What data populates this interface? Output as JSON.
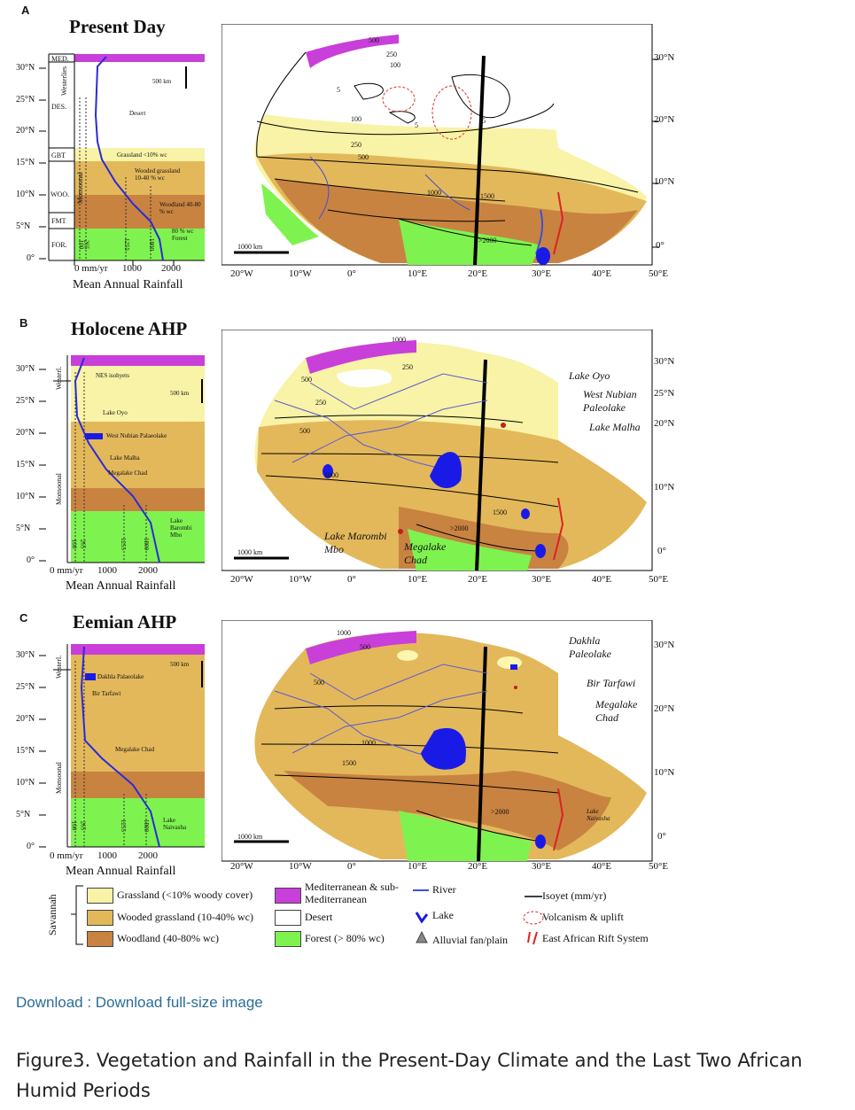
{
  "panels": [
    {
      "id": "A",
      "letter": "A",
      "title": "Present Day",
      "lat_labels": [
        "30°N",
        "25°N",
        "20°N",
        "15°N",
        "10°N",
        "5°N",
        "0°"
      ],
      "zones": [
        "MED.",
        "DES.",
        "GBT",
        "WOO.",
        "FMT",
        "FOR."
      ],
      "side_labels": [
        "Westerlies",
        "Monsoonal"
      ],
      "scale_col": "500 km",
      "col_annotations": [
        "Desert",
        "Grassland <10% wc",
        "Wooded grassland 10-40 % wc",
        "Woodland 40-80 % wc",
        "80 % wc Forest"
      ],
      "isoyet_ticks": [
        "100",
        "265",
        "1255",
        "1800"
      ],
      "x_ticks": [
        "0 mm/yr",
        "1000",
        "2000"
      ],
      "x_title": "Mean Annual Rainfall",
      "map_scale": "1000 km",
      "map_right_lats": [
        "30°N",
        "20°N",
        "10°N",
        "0°"
      ],
      "map_lons": [
        "20°W",
        "10°W",
        "0°",
        "10°E",
        "20°E",
        "30°E",
        "40°E",
        "50°E"
      ],
      "map_isoyets": [
        "500",
        "250",
        "100",
        "5",
        "5",
        "5",
        "100",
        "250",
        "500",
        "1000",
        "1500",
        ">2000"
      ],
      "map_names": []
    },
    {
      "id": "B",
      "letter": "B",
      "title": "Holocene AHP",
      "lat_labels": [
        "30°N",
        "25°N",
        "20°N",
        "15°N",
        "10°N",
        "5°N",
        "0°"
      ],
      "side_labels": [
        "Westerl.",
        "Monsoonal"
      ],
      "scale_col": "500 km",
      "col_annotations": [
        "NES isohyets",
        "Lake Oyo",
        "West Nubian Palaeolake",
        "Lake Malha",
        "Megalake Chad",
        "Lake Barombi Mbo"
      ],
      "isoyet_ticks": [
        "100",
        "265",
        "1255",
        "1800"
      ],
      "x_ticks": [
        "0 mm/yr",
        "1000",
        "2000"
      ],
      "x_title": "Mean Annual Rainfall",
      "map_scale": "1000 km",
      "map_right_lats": [
        "30°N",
        "25°N",
        "20°N",
        "10°N",
        "0°"
      ],
      "map_lons": [
        "20°W",
        "10°W",
        "0°",
        "10°E",
        "20°E",
        "30°E",
        "40°E",
        "50°E"
      ],
      "map_isoyets": [
        "1000",
        "500",
        "250",
        "250",
        "500",
        "1000",
        "1500",
        ">2000"
      ],
      "map_names": [
        "Lake Oyo",
        "West Nubian Paleolake",
        "Lake Malha",
        "Lake Marombi Mbo",
        "Megalake Chad"
      ]
    },
    {
      "id": "C",
      "letter": "C",
      "title": "Eemian AHP",
      "lat_labels": [
        "30°N",
        "25°N",
        "20°N",
        "15°N",
        "10°N",
        "5°N",
        "0°"
      ],
      "side_labels": [
        "Westerl.",
        "Monsoonal"
      ],
      "scale_col": "500 km",
      "col_annotations": [
        "Dakhla Palaeolake",
        "Bir Tarfawi",
        "Megalake Chad",
        "Lake Naivasha"
      ],
      "isoyet_ticks": [
        "100",
        "265",
        "1255",
        "1800"
      ],
      "x_ticks": [
        "0 mm/yr",
        "1000",
        "2000"
      ],
      "x_title": "Mean Annual Rainfall",
      "map_scale": "1000 km",
      "map_right_lats": [
        "30°N",
        "20°N",
        "10°N",
        "0°"
      ],
      "map_lons": [
        "20°W",
        "10°W",
        "0°",
        "10°E",
        "20°E",
        "30°E",
        "40°E",
        "50°E"
      ],
      "map_isoyets": [
        "1000",
        "500",
        "500",
        "1000",
        "1500",
        ">2000"
      ],
      "map_names": [
        "Dakhla Paleolake",
        "Bir Tarfawi",
        "Megalake Chad",
        "Lake Naivasha"
      ]
    }
  ],
  "legend": {
    "group_label": "Savannah",
    "grassland": "Grassland (<10% woody cover)",
    "wooded": "Wooded grassland (10-40% wc)",
    "woodland": "Woodland (40-80% wc)",
    "med": "Mediterranean & sub-Mediterranean",
    "desert": "Desert",
    "forest": "Forest (> 80% wc)",
    "river": "River",
    "lake": "Lake",
    "fan": "Alluvial fan/plain",
    "isoyet": "Isoyet (mm/yr)",
    "volcanism": "Volcanism & uplift",
    "rift": "East African Rift System"
  },
  "colors": {
    "med": "#c93fd9",
    "grassland": "#f8f3a6",
    "wooded": "#e3b85b",
    "woodland": "#c88341",
    "forest": "#7ef34f",
    "lake": "#1a1ae6",
    "river": "#5b5bd0"
  },
  "download": "Download : Download full-size image",
  "caption": "Figure3. Vegetation and Rainfall in the Present-Day Climate and the Last Two African Humid Periods"
}
